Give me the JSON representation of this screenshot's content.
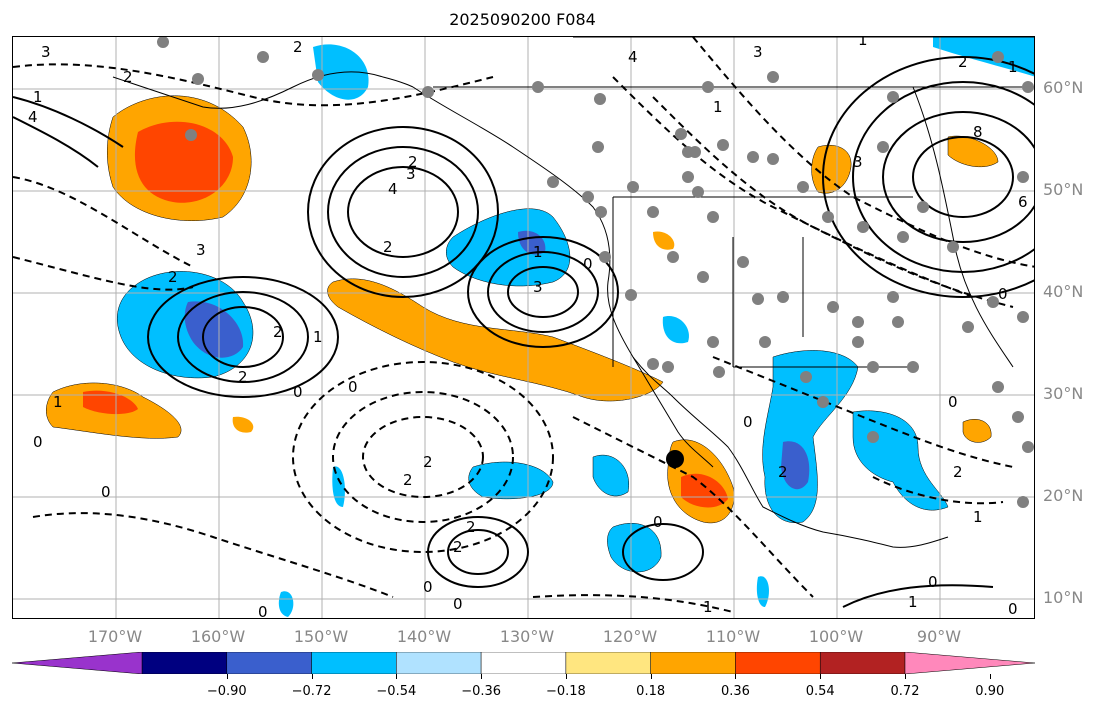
{
  "title": "2025090200 F084",
  "lat_labels": [
    "60°N",
    "50°N",
    "40°N",
    "30°N",
    "20°N",
    "10°N"
  ],
  "lon_labels": [
    "170°W",
    "160°W",
    "150°W",
    "140°W",
    "130°W",
    "120°W",
    "110°W",
    "100°W",
    "90°W"
  ],
  "colorbar": {
    "ticks": [
      "−0.90",
      "−0.72",
      "−0.54",
      "−0.36",
      "−0.18",
      "0.18",
      "0.36",
      "0.54",
      "0.72",
      "0.90"
    ],
    "colors": [
      "#9933cc",
      "#000080",
      "#3a5fcd",
      "#00bfff",
      "#b0e2ff",
      "#ffffff",
      "#ffe680",
      "#ffa500",
      "#ff4500",
      "#b22222",
      "#ff88bb"
    ]
  },
  "contour_labels": [
    "3",
    "2",
    "1",
    "4",
    "2",
    "2",
    "4",
    "3",
    "2",
    "3",
    "1",
    "2",
    "3",
    "2",
    "1",
    "2",
    "1",
    "2",
    "0",
    "0",
    "0",
    "0",
    "0",
    "2",
    "2",
    "2",
    "2",
    "1",
    "0",
    "1",
    "0",
    "1",
    "0",
    "8",
    "6",
    "3",
    "0",
    "0",
    "2",
    "1",
    "0",
    "1",
    "4",
    "2",
    "1",
    "3",
    "0",
    "0",
    "0"
  ],
  "colors": {
    "land": "#000000",
    "grid": "#b0b0b0",
    "station": "#808080",
    "storm_marker": "#000000"
  }
}
